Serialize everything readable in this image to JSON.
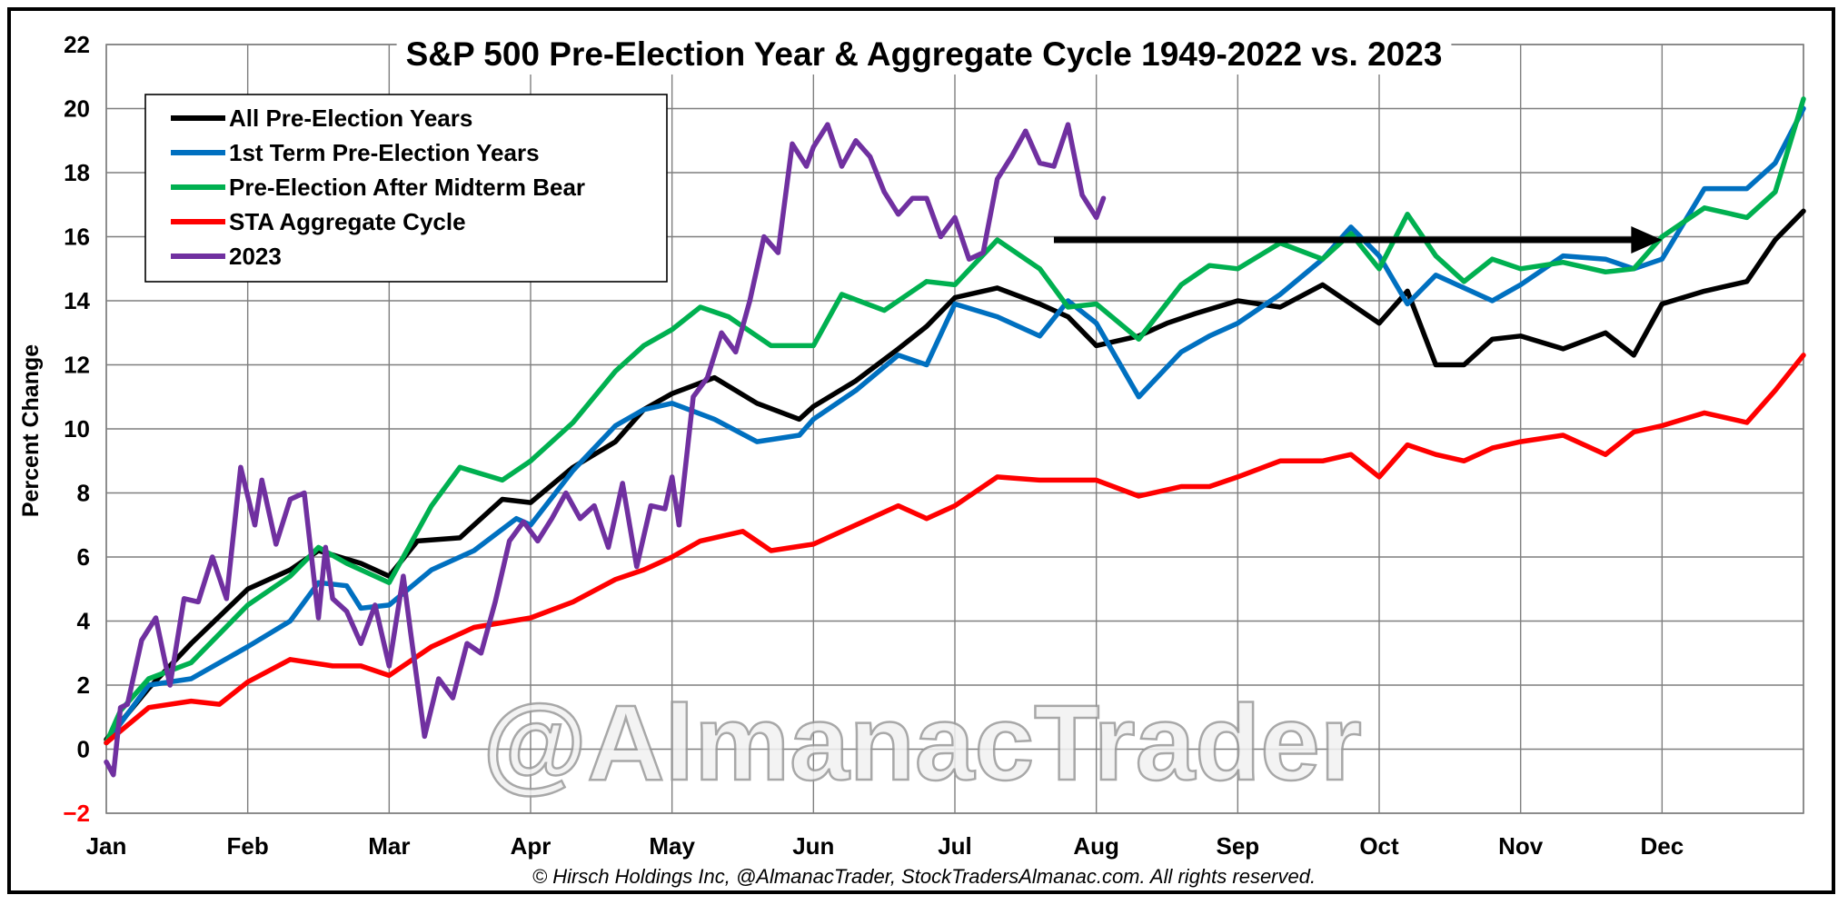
{
  "chart_data": {
    "type": "line",
    "title": "S&P 500 Pre-Election Year & Aggregate Cycle 1949-2022 vs. 2023",
    "ylabel": "Percent Change",
    "xlabel": "",
    "ylim": [
      -2,
      22
    ],
    "yticks": [
      -2,
      0,
      2,
      4,
      6,
      8,
      10,
      12,
      14,
      16,
      18,
      20,
      22
    ],
    "categories": [
      "Jan",
      "Feb",
      "Mar",
      "Apr",
      "May",
      "Jun",
      "Jul",
      "Aug",
      "Sep",
      "Oct",
      "Nov",
      "Dec"
    ],
    "grid": true,
    "legend_position": "top-left",
    "footer": "© Hirsch Holdings Inc, @AlmanacTrader, StockTradersAlmanac.com. All rights reserved.",
    "watermark": "@AlmanacTrader",
    "colors": {
      "negative_tick": "#ff0000",
      "arrow": "#000000"
    },
    "arrow": {
      "x_start": 6.7,
      "x_end": 11.0,
      "y": 15.9
    },
    "series": [
      {
        "name": "All Pre-Election Years",
        "color": "#000000",
        "x": [
          0,
          0.3,
          0.6,
          1.0,
          1.3,
          1.5,
          1.8,
          2.0,
          2.2,
          2.5,
          2.8,
          3.0,
          3.3,
          3.6,
          3.8,
          4.0,
          4.3,
          4.6,
          4.9,
          5.0,
          5.3,
          5.6,
          5.8,
          6.0,
          6.3,
          6.6,
          6.8,
          7.0,
          7.3,
          7.5,
          7.7,
          8.0,
          8.3,
          8.6,
          8.8,
          9.0,
          9.2,
          9.4,
          9.6,
          9.8,
          10.0,
          10.3,
          10.6,
          10.8,
          11.0,
          11.3,
          11.6,
          11.8,
          12.0
        ],
        "values": [
          0.3,
          1.9,
          3.3,
          5.0,
          5.6,
          6.2,
          5.8,
          5.4,
          6.5,
          6.6,
          7.8,
          7.7,
          8.8,
          9.6,
          10.6,
          11.1,
          11.6,
          10.8,
          10.3,
          10.7,
          11.5,
          12.5,
          13.2,
          14.1,
          14.4,
          13.9,
          13.5,
          12.6,
          12.9,
          13.3,
          13.6,
          14.0,
          13.8,
          14.5,
          13.9,
          13.3,
          14.3,
          12.0,
          12.0,
          12.8,
          12.9,
          12.5,
          13.0,
          12.3,
          13.9,
          14.3,
          14.6,
          15.9,
          16.8
        ]
      },
      {
        "name": "1st Term Pre-Election Years",
        "color": "#0070c0",
        "x": [
          0,
          0.3,
          0.6,
          1.0,
          1.3,
          1.5,
          1.7,
          1.8,
          2.0,
          2.3,
          2.6,
          2.9,
          3.0,
          3.3,
          3.6,
          3.8,
          4.0,
          4.3,
          4.6,
          4.9,
          5.0,
          5.3,
          5.6,
          5.8,
          6.0,
          6.3,
          6.6,
          6.8,
          7.0,
          7.3,
          7.6,
          7.8,
          8.0,
          8.3,
          8.6,
          8.8,
          9.0,
          9.2,
          9.4,
          9.6,
          9.8,
          10.0,
          10.3,
          10.6,
          10.8,
          11.0,
          11.3,
          11.6,
          11.8,
          12.0
        ],
        "values": [
          0.2,
          2.0,
          2.2,
          3.2,
          4.0,
          5.2,
          5.1,
          4.4,
          4.5,
          5.6,
          6.2,
          7.2,
          7.0,
          8.7,
          10.1,
          10.6,
          10.8,
          10.3,
          9.6,
          9.8,
          10.3,
          11.2,
          12.3,
          12.0,
          13.9,
          13.5,
          12.9,
          14.0,
          13.3,
          11.0,
          12.4,
          12.9,
          13.3,
          14.2,
          15.3,
          16.3,
          15.4,
          13.9,
          14.8,
          14.4,
          14.0,
          14.5,
          15.4,
          15.3,
          15.0,
          15.3,
          17.5,
          17.5,
          18.3,
          20.0
        ]
      },
      {
        "name": "Pre-Election After Midterm Bear",
        "color": "#00b050",
        "x": [
          0,
          0.1,
          0.3,
          0.6,
          1.0,
          1.3,
          1.5,
          1.7,
          2.0,
          2.3,
          2.5,
          2.8,
          3.0,
          3.3,
          3.6,
          3.8,
          4.0,
          4.2,
          4.4,
          4.7,
          5.0,
          5.2,
          5.5,
          5.8,
          6.0,
          6.3,
          6.6,
          6.8,
          7.0,
          7.3,
          7.6,
          7.8,
          8.0,
          8.3,
          8.6,
          8.8,
          9.0,
          9.2,
          9.4,
          9.6,
          9.8,
          10.0,
          10.3,
          10.6,
          10.8,
          11.0,
          11.3,
          11.6,
          11.8,
          12.0
        ],
        "values": [
          0.2,
          1.2,
          2.2,
          2.7,
          4.5,
          5.4,
          6.3,
          5.8,
          5.2,
          7.6,
          8.8,
          8.4,
          9.0,
          10.2,
          11.8,
          12.6,
          13.1,
          13.8,
          13.5,
          12.6,
          12.6,
          14.2,
          13.7,
          14.6,
          14.5,
          15.9,
          15.0,
          13.8,
          13.9,
          12.8,
          14.5,
          15.1,
          15.0,
          15.8,
          15.3,
          16.1,
          15.0,
          16.7,
          15.4,
          14.6,
          15.3,
          15.0,
          15.2,
          14.9,
          15.0,
          16.0,
          16.9,
          16.6,
          17.4,
          20.3
        ]
      },
      {
        "name": "STA Aggregate Cycle",
        "color": "#ff0000",
        "x": [
          0,
          0.3,
          0.6,
          0.8,
          1.0,
          1.3,
          1.6,
          1.8,
          2.0,
          2.3,
          2.6,
          3.0,
          3.3,
          3.6,
          3.8,
          4.0,
          4.2,
          4.5,
          4.7,
          5.0,
          5.3,
          5.6,
          5.8,
          6.0,
          6.3,
          6.6,
          7.0,
          7.3,
          7.6,
          7.8,
          8.0,
          8.3,
          8.6,
          8.8,
          9.0,
          9.2,
          9.4,
          9.6,
          9.8,
          10.0,
          10.3,
          10.6,
          10.8,
          11.0,
          11.3,
          11.6,
          11.8,
          12.0
        ],
        "values": [
          0.2,
          1.3,
          1.5,
          1.4,
          2.1,
          2.8,
          2.6,
          2.6,
          2.3,
          3.2,
          3.8,
          4.1,
          4.6,
          5.3,
          5.6,
          6.0,
          6.5,
          6.8,
          6.2,
          6.4,
          7.0,
          7.6,
          7.2,
          7.6,
          8.5,
          8.4,
          8.4,
          7.9,
          8.2,
          8.2,
          8.5,
          9.0,
          9.0,
          9.2,
          8.5,
          9.5,
          9.2,
          9.0,
          9.4,
          9.6,
          9.8,
          9.2,
          9.9,
          10.1,
          10.5,
          10.2,
          11.2,
          12.3
        ]
      },
      {
        "name": "2023",
        "color": "#7030a0",
        "x": [
          0,
          0.05,
          0.1,
          0.15,
          0.25,
          0.35,
          0.45,
          0.55,
          0.65,
          0.75,
          0.85,
          0.95,
          1.05,
          1.1,
          1.2,
          1.3,
          1.4,
          1.5,
          1.55,
          1.6,
          1.7,
          1.8,
          1.9,
          2.0,
          2.1,
          2.15,
          2.25,
          2.35,
          2.45,
          2.55,
          2.65,
          2.75,
          2.85,
          2.95,
          3.05,
          3.15,
          3.25,
          3.35,
          3.45,
          3.55,
          3.65,
          3.75,
          3.85,
          3.95,
          4.0,
          4.05,
          4.15,
          4.25,
          4.35,
          4.45,
          4.55,
          4.65,
          4.75,
          4.85,
          4.95,
          5.0,
          5.1,
          5.2,
          5.3,
          5.4,
          5.5,
          5.6,
          5.7,
          5.8,
          5.9,
          6.0,
          6.1,
          6.2,
          6.3,
          6.4,
          6.5,
          6.6,
          6.7,
          6.8,
          6.9,
          7.0,
          7.05
        ],
        "values": [
          -0.4,
          -0.8,
          1.3,
          1.4,
          3.4,
          4.1,
          2.0,
          4.7,
          4.6,
          6.0,
          4.7,
          8.8,
          7.0,
          8.4,
          6.4,
          7.8,
          8.0,
          4.1,
          6.3,
          4.7,
          4.3,
          3.3,
          4.5,
          2.6,
          5.4,
          3.7,
          0.4,
          2.2,
          1.6,
          3.3,
          3.0,
          4.6,
          6.5,
          7.1,
          6.5,
          7.2,
          8.0,
          7.2,
          7.6,
          6.3,
          8.3,
          5.7,
          7.6,
          7.5,
          8.5,
          7.0,
          11.0,
          11.6,
          13.0,
          12.4,
          14.0,
          16.0,
          15.5,
          18.9,
          18.2,
          18.8,
          19.5,
          18.2,
          19.0,
          18.5,
          17.4,
          16.7,
          17.2,
          17.2,
          16.0,
          16.6,
          15.3,
          15.5,
          17.8,
          18.5,
          19.3,
          18.3,
          18.2,
          19.5,
          17.3,
          16.6,
          17.2
        ]
      }
    ]
  }
}
